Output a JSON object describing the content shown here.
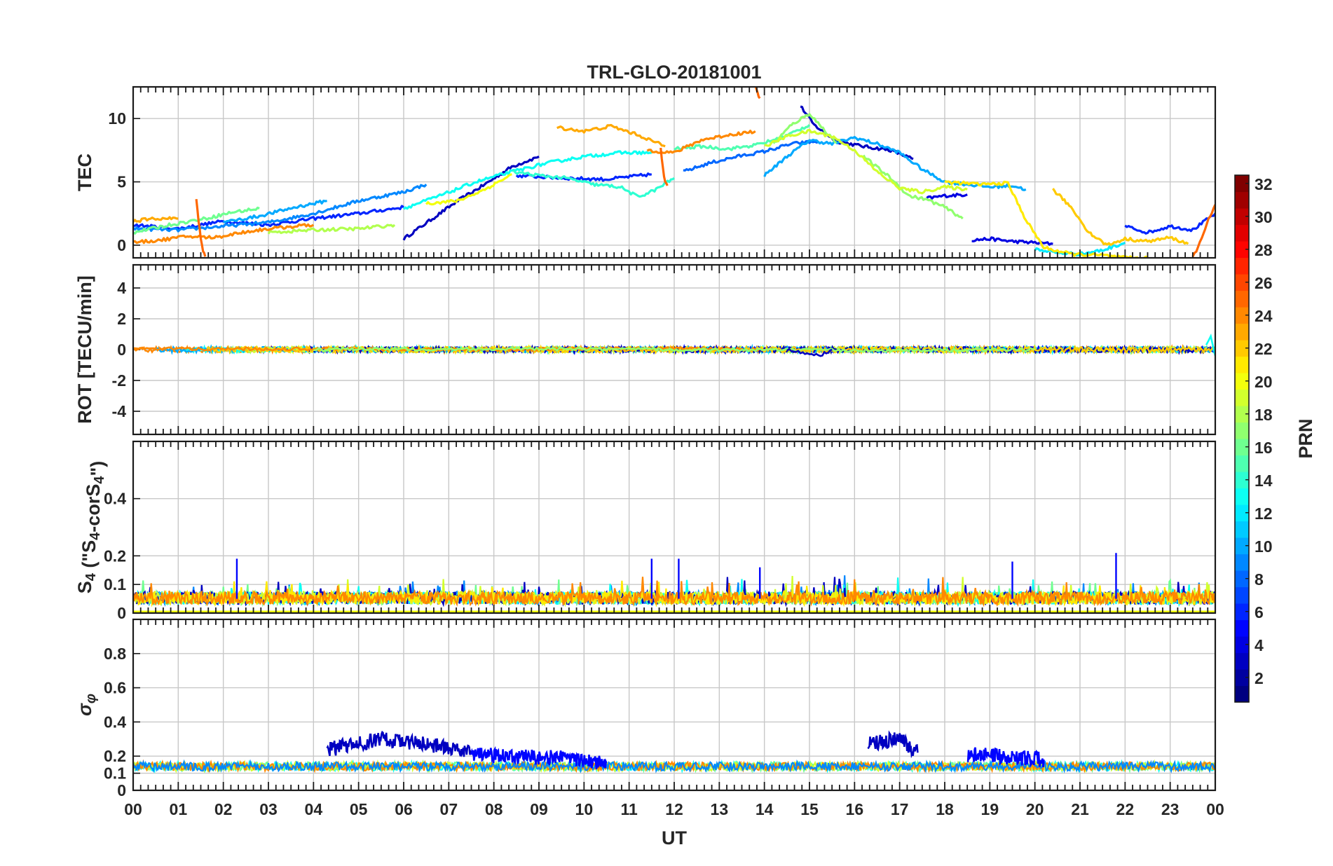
{
  "chart_data": {
    "type": "line",
    "title": "TRL-GLO-20181001",
    "xlabel": "UT",
    "x_ticks": [
      "00",
      "01",
      "02",
      "03",
      "04",
      "05",
      "06",
      "07",
      "08",
      "09",
      "10",
      "11",
      "12",
      "13",
      "14",
      "15",
      "16",
      "17",
      "18",
      "19",
      "20",
      "21",
      "22",
      "23",
      "00"
    ],
    "x_range_hours": [
      0,
      24
    ],
    "grid": true,
    "panels": [
      {
        "id": "tec",
        "ylabel": "TEC",
        "ylim": [
          -1,
          12.5
        ],
        "yticks": [
          0,
          5,
          10
        ],
        "series": [
          {
            "prn": 3,
            "t": [
              6.0,
              6.6,
              7.2,
              7.8,
              8.4,
              9.0
            ],
            "y": [
              0.5,
              2.0,
              3.5,
              4.8,
              6.2,
              7.0
            ]
          },
          {
            "prn": 3,
            "t": [
              14.8,
              15.1,
              15.6,
              16.2,
              16.8,
              17.3
            ],
            "y": [
              11.0,
              9.5,
              8.2,
              7.8,
              7.5,
              6.8
            ]
          },
          {
            "prn": 4,
            "t": [
              17.6,
              18.0,
              18.5
            ],
            "y": [
              3.7,
              3.9,
              4.0
            ]
          },
          {
            "prn": 4,
            "t": [
              18.6,
              19.0,
              19.5,
              20.0,
              20.4
            ],
            "y": [
              0.4,
              0.5,
              0.3,
              0.2,
              0.1
            ]
          },
          {
            "prn": 6,
            "t": [
              0.0,
              1.0,
              2.0,
              3.0,
              4.0,
              5.0,
              6.0
            ],
            "y": [
              1.6,
              1.3,
              1.9,
              1.6,
              2.1,
              2.5,
              3.0
            ]
          },
          {
            "prn": 6,
            "t": [
              8.5,
              9.5,
              10.5,
              11.5
            ],
            "y": [
              5.5,
              5.3,
              5.2,
              5.6
            ]
          },
          {
            "prn": 6,
            "t": [
              22.0,
              22.5,
              23.0,
              23.5,
              24.0
            ],
            "y": [
              1.5,
              1.0,
              1.5,
              1.2,
              2.5
            ]
          },
          {
            "prn": 8,
            "t": [
              12.2,
              12.8,
              13.4,
              14.0,
              14.6,
              15.2
            ],
            "y": [
              5.8,
              6.5,
              7.0,
              7.4,
              8.0,
              8.2
            ]
          },
          {
            "prn": 9,
            "t": [
              0.0,
              1.0,
              2.0,
              3.0,
              4.0,
              5.0,
              6.0,
              6.5
            ],
            "y": [
              1.3,
              1.2,
              1.5,
              1.8,
              2.5,
              3.5,
              4.2,
              4.8
            ]
          },
          {
            "prn": 10,
            "t": [
              14.0,
              14.5,
              15.0,
              15.5,
              16.0,
              16.5,
              17.0,
              17.5,
              18.0,
              18.5,
              19.0,
              19.5,
              19.8
            ],
            "y": [
              5.5,
              7.0,
              8.3,
              8.0,
              8.5,
              8.0,
              7.3,
              6.0,
              5.0,
              4.8,
              4.6,
              4.7,
              4.4
            ]
          },
          {
            "prn": 10,
            "t": [
              2.0,
              2.8,
              3.6,
              4.3
            ],
            "y": [
              1.8,
              2.3,
              3.0,
              3.5
            ]
          },
          {
            "prn": 12,
            "t": [
              20.0,
              20.5,
              21.0,
              21.5,
              22.0
            ],
            "y": [
              -0.3,
              -0.6,
              -0.7,
              -0.4,
              0.2
            ]
          },
          {
            "prn": 13,
            "t": [
              6.0,
              6.8,
              7.6,
              8.4,
              9.2,
              10.0,
              10.8,
              11.5
            ],
            "y": [
              2.9,
              3.9,
              5.0,
              5.8,
              6.5,
              7.0,
              7.3,
              7.3
            ]
          },
          {
            "prn": 14,
            "t": [
              8.4,
              9.0,
              9.6,
              10.2,
              10.8,
              11.2,
              11.6,
              12.0
            ],
            "y": [
              5.8,
              5.5,
              5.3,
              4.8,
              4.6,
              3.8,
              4.4,
              5.3
            ]
          },
          {
            "prn": 15,
            "t": [
              12.0,
              12.6,
              13.2,
              13.8,
              14.4,
              15.0
            ],
            "y": [
              7.6,
              7.8,
              7.6,
              7.9,
              8.5,
              9.5
            ]
          },
          {
            "prn": 16,
            "t": [
              0.0,
              0.8,
              1.6,
              2.2,
              2.8
            ],
            "y": [
              1.0,
              1.6,
              2.1,
              2.6,
              2.9
            ]
          },
          {
            "prn": 17,
            "t": [
              14.2,
              14.6,
              15.0,
              15.3,
              15.6
            ],
            "y": [
              8.0,
              9.5,
              10.4,
              9.2,
              8.1
            ]
          },
          {
            "prn": 17,
            "t": [
              16.2,
              16.8,
              17.2,
              17.6,
              18.0,
              18.4
            ],
            "y": [
              7.0,
              5.3,
              3.9,
              3.6,
              3.0,
              2.1
            ]
          },
          {
            "prn": 18,
            "t": [
              3.0,
              4.0,
              5.0,
              5.8
            ],
            "y": [
              1.0,
              1.2,
              1.3,
              1.6
            ]
          },
          {
            "prn": 19,
            "t": [
              14.0,
              14.5,
              15.0,
              15.5,
              16.0,
              16.5,
              17.0,
              17.5,
              18.0,
              18.5
            ],
            "y": [
              7.8,
              8.6,
              9.0,
              8.6,
              7.5,
              5.8,
              4.5,
              4.2,
              4.6,
              4.4
            ]
          },
          {
            "prn": 20,
            "t": [
              6.5,
              7.2,
              7.8,
              8.4
            ],
            "y": [
              3.3,
              3.5,
              4.4,
              5.6
            ]
          },
          {
            "prn": 21,
            "t": [
              18.0,
              18.8,
              19.4,
              19.8,
              20.2,
              20.8,
              21.5,
              22.0,
              22.5
            ],
            "y": [
              5.0,
              4.8,
              4.9,
              2.0,
              -0.2,
              -0.7,
              -0.8,
              -1.0,
              -1.0
            ]
          },
          {
            "prn": 22,
            "t": [
              20.4,
              20.8,
              21.2,
              21.6,
              22.0,
              22.5,
              23.0,
              23.4
            ],
            "y": [
              4.4,
              3.0,
              1.0,
              0.0,
              0.5,
              0.3,
              0.6,
              0.1
            ]
          },
          {
            "prn": 23,
            "t": [
              0.0,
              0.5,
              1.0
            ],
            "y": [
              1.9,
              2.1,
              2.1
            ]
          },
          {
            "prn": 23,
            "t": [
              9.4,
              10.0,
              10.6,
              11.2,
              11.8
            ],
            "y": [
              9.3,
              9.0,
              9.4,
              8.7,
              7.8
            ]
          },
          {
            "prn": 24,
            "t": [
              11.4,
              12.0,
              12.6,
              13.2,
              13.8
            ],
            "y": [
              7.5,
              7.3,
              8.3,
              8.7,
              9.0
            ]
          },
          {
            "prn": 24,
            "t": [
              0.0,
              0.6,
              1.2,
              1.8,
              2.4,
              3.0,
              3.6,
              4.0
            ],
            "y": [
              0.2,
              0.4,
              0.7,
              0.6,
              1.0,
              1.3,
              1.5,
              1.6
            ]
          },
          {
            "prn": 25,
            "t": [
              1.4,
              1.45,
              1.5,
              1.55,
              1.6
            ],
            "y": [
              3.6,
              2.0,
              0.5,
              -0.5,
              -0.9
            ]
          },
          {
            "prn": 25,
            "t": [
              11.7,
              11.75,
              11.8,
              11.85
            ],
            "y": [
              7.6,
              6.0,
              5.0,
              4.7
            ]
          },
          {
            "prn": 25,
            "t": [
              13.8,
              13.85,
              13.9
            ],
            "y": [
              12.5,
              12.0,
              11.6
            ]
          },
          {
            "prn": 25,
            "t": [
              23.5,
              23.7,
              23.85,
              24.0
            ],
            "y": [
              -1.0,
              0.5,
              2.0,
              3.2
            ]
          }
        ]
      },
      {
        "id": "rot",
        "ylabel": "ROT [TECU/min]",
        "ylim": [
          -5.5,
          5.5
        ],
        "yticks": [
          -4,
          -2,
          0,
          2,
          4
        ],
        "series_note": "All PRNs fluctuate near 0 TECU/min (about ±0.4), with a brief excursion near 24 UT",
        "series": [
          {
            "prn": 24,
            "t": [
              0,
              4,
              8,
              12,
              14
            ],
            "y": [
              0.05,
              0.05,
              0.0,
              0.1,
              0.0
            ]
          },
          {
            "prn": 17,
            "t": [
              4,
              8,
              12,
              16,
              20
            ],
            "y": [
              0.0,
              0.05,
              0.0,
              -0.05,
              0.0
            ]
          },
          {
            "prn": 3,
            "t": [
              14.5,
              15.0,
              15.2,
              15.5
            ],
            "y": [
              0.0,
              -0.3,
              -0.4,
              0.0
            ]
          },
          {
            "prn": 13,
            "t": [
              23.8,
              23.9,
              24.0
            ],
            "y": [
              0.3,
              0.8,
              -0.4
            ]
          }
        ]
      },
      {
        "id": "s4",
        "ylabel": "S4 (\"S4-corS4\")",
        "ylim": [
          0,
          0.6
        ],
        "yticks": [
          0,
          0.1,
          0.2,
          0.4
        ],
        "series_note": "Scintillation index mostly 0.02–0.10, peaks to ~0.2",
        "peaks": [
          {
            "t": 2.3,
            "y": 0.19
          },
          {
            "t": 11.5,
            "y": 0.19
          },
          {
            "t": 12.1,
            "y": 0.19
          },
          {
            "t": 13.9,
            "y": 0.16
          },
          {
            "t": 19.5,
            "y": 0.18
          },
          {
            "t": 21.8,
            "y": 0.21
          }
        ]
      },
      {
        "id": "sigma_phi",
        "ylabel": "σφ",
        "ylim": [
          0,
          1.0
        ],
        "yticks": [
          0,
          0.1,
          0.2,
          0.4,
          0.6,
          0.8
        ],
        "series_note": "Phase scintillation baseline ~0.12–0.18; PRN 3–5 enhanced to ~0.35 in 04–07 UT and 16–17 UT",
        "segments": [
          {
            "prn": 3,
            "t": [
              4.3,
              5.0,
              5.6,
              6.2,
              6.8,
              7.5
            ],
            "y": [
              0.24,
              0.27,
              0.3,
              0.28,
              0.26,
              0.22
            ]
          },
          {
            "prn": 3,
            "t": [
              16.3,
              16.7,
              17.0,
              17.4
            ],
            "y": [
              0.27,
              0.29,
              0.3,
              0.22
            ]
          },
          {
            "prn": 5,
            "t": [
              7.5,
              8.5,
              9.5,
              10.5
            ],
            "y": [
              0.21,
              0.2,
              0.19,
              0.16
            ]
          },
          {
            "prn": 5,
            "t": [
              18.5,
              19.2,
              19.8,
              20.2
            ],
            "y": [
              0.21,
              0.2,
              0.19,
              0.18
            ]
          }
        ]
      }
    ],
    "colorbar": {
      "label": "PRN",
      "colormap": "jet",
      "range": [
        1,
        32
      ],
      "ticks": [
        2,
        4,
        6,
        8,
        10,
        12,
        14,
        16,
        18,
        20,
        22,
        24,
        26,
        28,
        30,
        32
      ]
    }
  },
  "colors": {
    "background": "#ffffff",
    "grid": "#c8c8c8",
    "frame": "#1a1a1a",
    "text": "#262626"
  }
}
